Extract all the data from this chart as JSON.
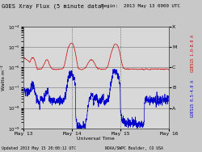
{
  "title": "GOES Xray Flux (5 minute data)",
  "begin_label": "Begin:  2013 May 13 0000 UTC",
  "ylabel": "Watts m⁻²",
  "xlabel": "Universal Time",
  "bottom_left": "Updated 2013 May 15 20:00:12 UTC",
  "bottom_right": "NOAA/SWPC Boulder, CO USA",
  "right_label_red": "GOES15 1.0-8.0 A",
  "right_label_blue": "GOES15 0.5-4.0 A",
  "xmin": 0,
  "xmax": 4320,
  "bg_color": "#c8c8c8",
  "plot_bg": "#d8d8d8",
  "grid_color": "#888888",
  "red_color": "#cc0000",
  "blue_color": "#0000cc",
  "title_color": "#000000",
  "label_color": "#000000",
  "tick_color": "#000000",
  "right_tick_color_red": "#cc0000",
  "right_tick_color_blue": "#0000cc",
  "day_labels": [
    "May 13",
    "May 14",
    "May 15",
    "May 16"
  ],
  "day_positions": [
    0,
    1440,
    2880,
    4320
  ],
  "flare_labels": [
    "X",
    "M",
    "C",
    "B",
    "A"
  ],
  "flare_values": [
    0.0001,
    1e-05,
    1e-06,
    1e-07,
    1e-08
  ],
  "ylim_low": 1e-09,
  "ylim_high": 0.0001
}
